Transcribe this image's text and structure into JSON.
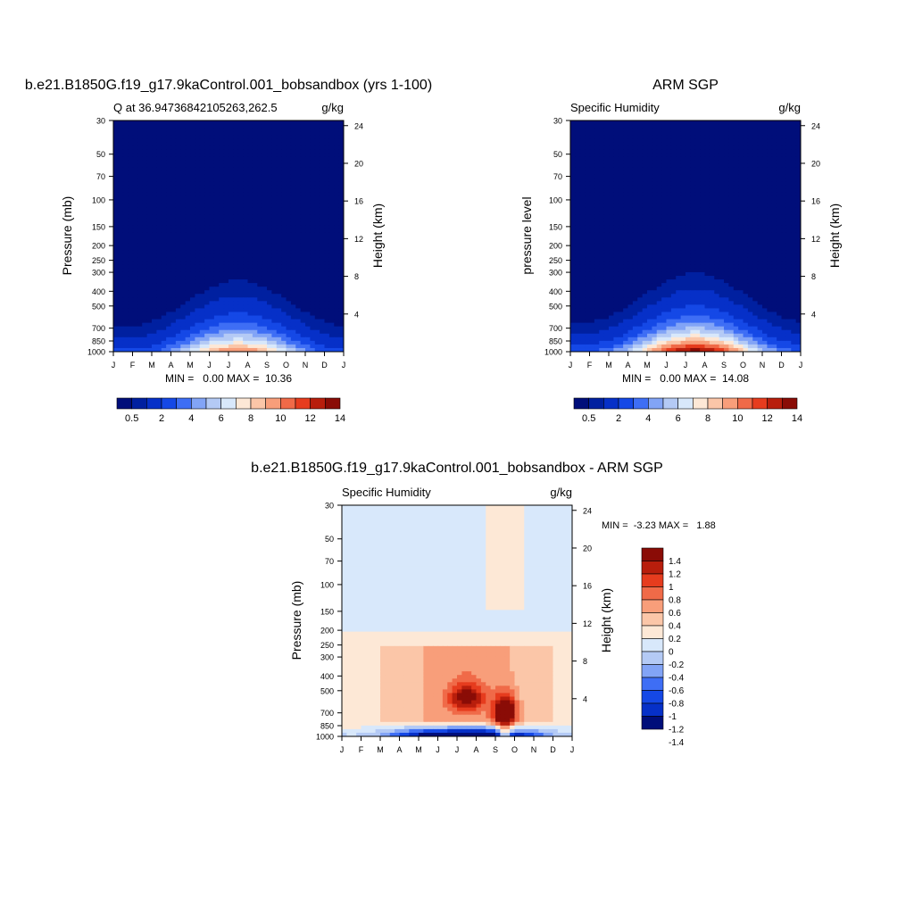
{
  "colors": {
    "seq_palette": [
      "#000e7a",
      "#0020a0",
      "#0630c8",
      "#1548e6",
      "#3e6ef5",
      "#82a4f6",
      "#b4caf5",
      "#d8e8fb",
      "#fde8d6",
      "#fbc6a8",
      "#f89e7a",
      "#f06a48",
      "#e63c1e",
      "#b81e0c",
      "#8a0c06"
    ],
    "diff_palette": [
      "#000e7a",
      "#0630c8",
      "#1548e6",
      "#3e6ef5",
      "#82a4f6",
      "#b4caf5",
      "#d8e8fb",
      "#fde8d6",
      "#fbc6a8",
      "#f89e7a",
      "#f06a48",
      "#e63c1e",
      "#b81e0c",
      "#8a0c06"
    ]
  },
  "chart_data": [
    {
      "type": "heatmap",
      "id": "model",
      "title": "b.e21.B1850G.f19_g17.9kaControl.001_bobsandbox (yrs 1-100)",
      "left_string": "Q at 36.94736842105263,262.5",
      "right_string": "g/kg",
      "ylabel": "Pressure (mb)",
      "y2label": "Height (km)",
      "x_ticks": [
        "J",
        "F",
        "M",
        "A",
        "M",
        "J",
        "J",
        "A",
        "S",
        "O",
        "N",
        "D",
        "J"
      ],
      "y_ticks": [
        30,
        50,
        70,
        100,
        150,
        200,
        250,
        300,
        400,
        500,
        700,
        850,
        1000
      ],
      "ylim": [
        30,
        1000
      ],
      "y2_ticks": [
        4,
        8,
        12,
        16,
        20,
        24
      ],
      "min_max_text": "MIN =   0.00 MAX =  10.36",
      "peak": 10.36,
      "colorbar_labels": [
        "0.5",
        "2",
        "4",
        "6",
        "8",
        "10",
        "12",
        "14"
      ]
    },
    {
      "type": "heatmap",
      "id": "obs",
      "title": "ARM SGP",
      "left_string": "Specific Humidity",
      "right_string": "g/kg",
      "ylabel": "pressure level",
      "y2label": "Height (km)",
      "x_ticks": [
        "J",
        "F",
        "M",
        "A",
        "M",
        "J",
        "J",
        "A",
        "S",
        "O",
        "N",
        "D",
        "J"
      ],
      "y_ticks": [
        30,
        50,
        70,
        100,
        150,
        200,
        250,
        300,
        400,
        500,
        700,
        850,
        1000
      ],
      "ylim": [
        30,
        1000
      ],
      "y2_ticks": [
        4,
        8,
        12,
        16,
        20,
        24
      ],
      "min_max_text": "MIN =   0.00 MAX =  14.08",
      "peak": 14.08,
      "colorbar_labels": [
        "0.5",
        "2",
        "4",
        "6",
        "8",
        "10",
        "12",
        "14"
      ]
    },
    {
      "type": "heatmap",
      "id": "diff",
      "title": "b.e21.B1850G.f19_g17.9kaControl.001_bobsandbox - ARM SGP",
      "left_string": "Specific Humidity",
      "right_string": "g/kg",
      "ylabel": "Pressure (mb)",
      "y2label": "Height (km)",
      "x_ticks": [
        "J",
        "F",
        "M",
        "A",
        "M",
        "J",
        "J",
        "A",
        "S",
        "O",
        "N",
        "D",
        "J"
      ],
      "y_ticks": [
        30,
        50,
        70,
        100,
        150,
        200,
        250,
        300,
        400,
        500,
        700,
        850,
        1000
      ],
      "ylim": [
        30,
        1000
      ],
      "y2_ticks": [
        4,
        8,
        12,
        16,
        20,
        24
      ],
      "min_max_text": "MIN =  -3.23 MAX =   1.88",
      "min": -3.23,
      "max": 1.88,
      "colorbar_labels": [
        "1.4",
        "1.2",
        "1",
        "0.8",
        "0.6",
        "0.4",
        "0.2",
        "0",
        "-0.2",
        "-0.4",
        "-0.6",
        "-0.8",
        "-1",
        "-1.2",
        "-1.4"
      ]
    }
  ]
}
